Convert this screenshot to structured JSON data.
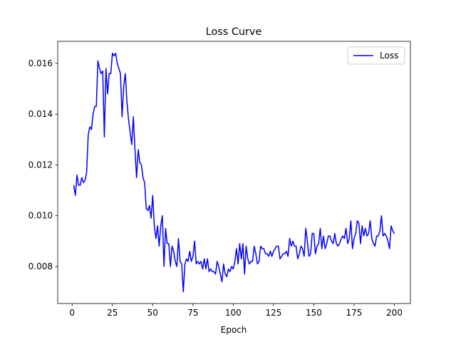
{
  "chart_data": {
    "type": "line",
    "title": "Loss Curve",
    "xlabel": "Epoch",
    "x": [
      1,
      2,
      3,
      4,
      5,
      6,
      7,
      8,
      9,
      10,
      11,
      12,
      13,
      14,
      15,
      16,
      17,
      18,
      19,
      20,
      21,
      22,
      23,
      24,
      25,
      26,
      27,
      28,
      29,
      30,
      31,
      32,
      33,
      34,
      35,
      36,
      37,
      38,
      39,
      40,
      41,
      42,
      43,
      44,
      45,
      46,
      47,
      48,
      49,
      50,
      51,
      52,
      53,
      54,
      55,
      56,
      57,
      58,
      59,
      60,
      61,
      62,
      63,
      64,
      65,
      66,
      67,
      68,
      69,
      70,
      71,
      72,
      73,
      74,
      75,
      76,
      77,
      78,
      79,
      80,
      81,
      82,
      83,
      84,
      85,
      86,
      87,
      88,
      89,
      90,
      91,
      92,
      93,
      94,
      95,
      96,
      97,
      98,
      99,
      100,
      101,
      102,
      103,
      104,
      105,
      106,
      107,
      108,
      109,
      110,
      111,
      112,
      113,
      114,
      115,
      116,
      117,
      118,
      119,
      120,
      121,
      122,
      123,
      124,
      125,
      126,
      127,
      128,
      129,
      130,
      131,
      132,
      133,
      134,
      135,
      136,
      137,
      138,
      139,
      140,
      141,
      142,
      143,
      144,
      145,
      146,
      147,
      148,
      149,
      150,
      151,
      152,
      153,
      154,
      155,
      156,
      157,
      158,
      159,
      160,
      161,
      162,
      163,
      164,
      165,
      166,
      167,
      168,
      169,
      170,
      171,
      172,
      173,
      174,
      175,
      176,
      177,
      178,
      179,
      180,
      181,
      182,
      183,
      184,
      185,
      186,
      187,
      188,
      189,
      190,
      191,
      192,
      193,
      194,
      195,
      196,
      197,
      198,
      199,
      200
    ],
    "series": [
      {
        "name": "Loss",
        "color": "#0000ff",
        "values": [
          0.0112,
          0.0108,
          0.0116,
          0.0112,
          0.0112,
          0.0115,
          0.0113,
          0.0114,
          0.0117,
          0.0132,
          0.0135,
          0.0134,
          0.014,
          0.0143,
          0.0143,
          0.0161,
          0.0158,
          0.0156,
          0.0157,
          0.0131,
          0.0158,
          0.0148,
          0.0156,
          0.0156,
          0.0164,
          0.0163,
          0.0164,
          0.016,
          0.0158,
          0.0156,
          0.0139,
          0.0151,
          0.0156,
          0.0145,
          0.0138,
          0.0133,
          0.0128,
          0.0139,
          0.0126,
          0.0115,
          0.0126,
          0.0121,
          0.012,
          0.0115,
          0.0113,
          0.0103,
          0.0102,
          0.0104,
          0.0099,
          0.0108,
          0.0096,
          0.0091,
          0.0096,
          0.0088,
          0.0096,
          0.01,
          0.008,
          0.0095,
          0.0089,
          0.0089,
          0.008,
          0.0088,
          0.0086,
          0.0082,
          0.008,
          0.0091,
          0.0082,
          0.0081,
          0.007,
          0.0081,
          0.0083,
          0.0082,
          0.0086,
          0.0082,
          0.0084,
          0.009,
          0.0081,
          0.0082,
          0.0081,
          0.0082,
          0.0079,
          0.0083,
          0.0079,
          0.0083,
          0.0078,
          0.0079,
          0.0078,
          0.0078,
          0.0077,
          0.0082,
          0.008,
          0.0077,
          0.0074,
          0.0081,
          0.0077,
          0.0076,
          0.0079,
          0.0078,
          0.008,
          0.0079,
          0.0082,
          0.0087,
          0.0081,
          0.0089,
          0.0083,
          0.0089,
          0.0077,
          0.0088,
          0.0083,
          0.0081,
          0.0082,
          0.0082,
          0.0088,
          0.0085,
          0.0081,
          0.0082,
          0.0088,
          0.0087,
          0.0087,
          0.0085,
          0.0085,
          0.0084,
          0.0086,
          0.0084,
          0.0086,
          0.0087,
          0.0088,
          0.0088,
          0.0083,
          0.0084,
          0.0085,
          0.0085,
          0.0086,
          0.0084,
          0.0091,
          0.0088,
          0.009,
          0.0088,
          0.0088,
          0.0083,
          0.0085,
          0.0088,
          0.0087,
          0.0084,
          0.0095,
          0.009,
          0.0084,
          0.0085,
          0.0093,
          0.0093,
          0.0085,
          0.0088,
          0.0089,
          0.0095,
          0.0087,
          0.0092,
          0.0087,
          0.0089,
          0.0092,
          0.0092,
          0.009,
          0.0089,
          0.0093,
          0.0089,
          0.0088,
          0.0089,
          0.0091,
          0.0092,
          0.0091,
          0.0095,
          0.0089,
          0.0091,
          0.0098,
          0.0087,
          0.0091,
          0.0093,
          0.0098,
          0.0097,
          0.0089,
          0.0096,
          0.0092,
          0.0095,
          0.0092,
          0.0093,
          0.0098,
          0.0091,
          0.0089,
          0.0088,
          0.0092,
          0.0092,
          0.0094,
          0.01,
          0.0092,
          0.0093,
          0.0092,
          0.009,
          0.0087,
          0.0096,
          0.0094,
          0.0093
        ]
      }
    ],
    "xlim": [
      -8.95,
      209.95
    ],
    "ylim": [
      0.00654,
      0.01687
    ],
    "xticks": [
      0,
      25,
      50,
      75,
      100,
      125,
      150,
      175,
      200
    ],
    "yticks": [
      0.008,
      {
        "value": 0.01,
        "label": "0.010"
      },
      0.012,
      0.014,
      0.016
    ],
    "legend": "upper right",
    "grid": false
  }
}
